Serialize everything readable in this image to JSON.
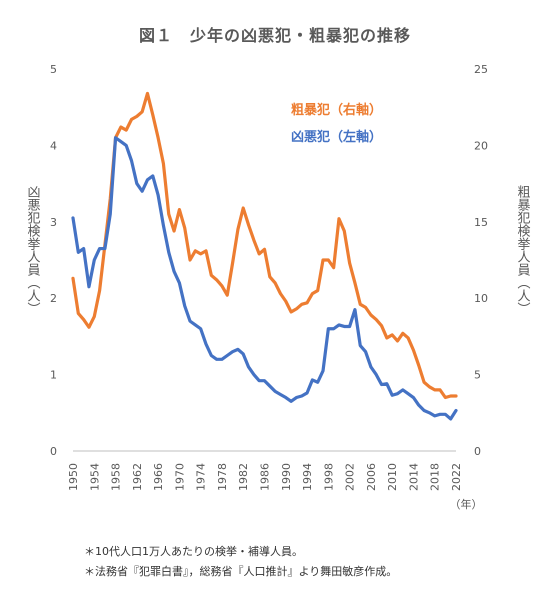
{
  "chart_data": {
    "type": "line",
    "title": "図１　少年の凶悪犯・粗暴犯の推移",
    "y_left_label": "凶悪犯検挙人員（人）",
    "y_right_label": "粗暴犯検挙人員（人）",
    "x_unit_label": "（年）",
    "x_ticks": [
      "1950",
      "1954",
      "1958",
      "1962",
      "1966",
      "1970",
      "1974",
      "1978",
      "1982",
      "1986",
      "1990",
      "1994",
      "1998",
      "2002",
      "2006",
      "2010",
      "2014",
      "2018",
      "2022"
    ],
    "y_left_ticks": [
      "0",
      "1",
      "2",
      "3",
      "4",
      "5"
    ],
    "y_right_ticks": [
      "0",
      "5",
      "10",
      "15",
      "20",
      "25"
    ],
    "xlim": [
      1950,
      2022
    ],
    "y_left_lim": [
      0,
      5
    ],
    "y_right_lim": [
      0,
      25
    ],
    "grid": false,
    "series": [
      {
        "name": "粗暴犯（右軸）",
        "axis": "right",
        "color": "#ED7D31",
        "x": [
          1950,
          1951,
          1952,
          1953,
          1954,
          1955,
          1956,
          1957,
          1958,
          1959,
          1960,
          1961,
          1962,
          1963,
          1964,
          1965,
          1966,
          1967,
          1968,
          1969,
          1970,
          1971,
          1972,
          1973,
          1974,
          1975,
          1976,
          1977,
          1978,
          1979,
          1980,
          1981,
          1982,
          1983,
          1984,
          1985,
          1986,
          1987,
          1988,
          1989,
          1990,
          1991,
          1992,
          1993,
          1994,
          1995,
          1996,
          1997,
          1998,
          1999,
          2000,
          2001,
          2002,
          2003,
          2004,
          2005,
          2006,
          2007,
          2008,
          2009,
          2010,
          2011,
          2012,
          2013,
          2014,
          2015,
          2016,
          2017,
          2018,
          2019,
          2020,
          2021,
          2022
        ],
        "values": [
          11.3,
          9.0,
          8.6,
          8.1,
          8.8,
          10.5,
          13.5,
          16.5,
          20.5,
          21.2,
          21.0,
          21.7,
          21.9,
          22.2,
          23.4,
          22.0,
          20.5,
          18.8,
          15.5,
          14.4,
          15.8,
          14.6,
          12.5,
          13.1,
          12.9,
          13.1,
          11.5,
          11.2,
          10.8,
          10.2,
          12.3,
          14.5,
          15.9,
          14.8,
          13.8,
          12.9,
          13.2,
          11.4,
          11.0,
          10.3,
          9.8,
          9.1,
          9.3,
          9.6,
          9.7,
          10.3,
          10.5,
          12.5,
          12.5,
          12.0,
          15.2,
          14.4,
          12.3,
          11.0,
          9.6,
          9.4,
          8.9,
          8.6,
          8.2,
          7.4,
          7.6,
          7.2,
          7.7,
          7.4,
          6.6,
          5.6,
          4.5,
          4.2,
          4.0,
          4.0,
          3.5,
          3.6,
          3.6
        ]
      },
      {
        "name": "凶悪犯（左軸）",
        "axis": "left",
        "color": "#4472C4",
        "x": [
          1950,
          1951,
          1952,
          1953,
          1954,
          1955,
          1956,
          1957,
          1958,
          1959,
          1960,
          1961,
          1962,
          1963,
          1964,
          1965,
          1966,
          1967,
          1968,
          1969,
          1970,
          1971,
          1972,
          1973,
          1974,
          1975,
          1976,
          1977,
          1978,
          1979,
          1980,
          1981,
          1982,
          1983,
          1984,
          1985,
          1986,
          1987,
          1988,
          1989,
          1990,
          1991,
          1992,
          1993,
          1994,
          1995,
          1996,
          1997,
          1998,
          1999,
          2000,
          2001,
          2002,
          2003,
          2004,
          2005,
          2006,
          2007,
          2008,
          2009,
          2010,
          2011,
          2012,
          2013,
          2014,
          2015,
          2016,
          2017,
          2018,
          2019,
          2020,
          2021,
          2022
        ],
        "values": [
          3.05,
          2.6,
          2.65,
          2.15,
          2.5,
          2.65,
          2.65,
          3.1,
          4.1,
          4.05,
          4.0,
          3.8,
          3.5,
          3.4,
          3.55,
          3.6,
          3.35,
          2.95,
          2.6,
          2.35,
          2.2,
          1.9,
          1.7,
          1.65,
          1.6,
          1.4,
          1.25,
          1.2,
          1.2,
          1.25,
          1.3,
          1.33,
          1.27,
          1.1,
          1.0,
          0.92,
          0.92,
          0.85,
          0.78,
          0.74,
          0.7,
          0.65,
          0.7,
          0.72,
          0.76,
          0.93,
          0.9,
          1.05,
          1.6,
          1.6,
          1.65,
          1.63,
          1.63,
          1.85,
          1.38,
          1.3,
          1.1,
          1.0,
          0.87,
          0.88,
          0.73,
          0.75,
          0.8,
          0.75,
          0.7,
          0.6,
          0.53,
          0.5,
          0.46,
          0.48,
          0.48,
          0.42,
          0.53
        ]
      }
    ]
  },
  "notes": {
    "note1": "＊10代人口1万人あたりの検挙・補導人員。",
    "note2": "＊法務省『犯罪白書』，総務省『人口推計』より舞田敏彦作成。"
  }
}
